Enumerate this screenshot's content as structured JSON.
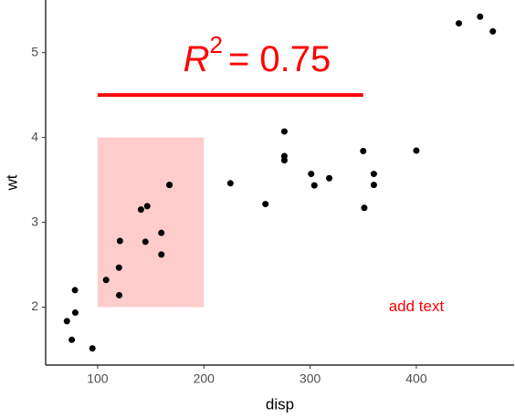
{
  "chart_data": {
    "type": "scatter",
    "x_label": "disp",
    "y_label": "wt",
    "series": [
      {
        "color": "#000000",
        "x": [
          160,
          160,
          108,
          258,
          360,
          225,
          360,
          146.7,
          140.8,
          167.6,
          167.6,
          275.8,
          275.8,
          275.8,
          472,
          460,
          440,
          78.7,
          75.7,
          71.1,
          120.1,
          318,
          304,
          350,
          400,
          79,
          120.3,
          95.1,
          351,
          145,
          301,
          121
        ],
        "values": [
          2.62,
          2.875,
          2.32,
          3.215,
          3.44,
          3.46,
          3.57,
          3.19,
          3.15,
          3.44,
          3.44,
          4.07,
          3.73,
          3.78,
          5.25,
          5.424,
          5.345,
          2.2,
          1.615,
          1.835,
          2.465,
          3.52,
          3.435,
          3.84,
          3.845,
          1.935,
          2.14,
          1.513,
          3.17,
          2.77,
          3.57,
          2.78
        ]
      }
    ],
    "xlim": [
      51.1,
      492.0
    ],
    "xticks": [
      100,
      200,
      300,
      400
    ],
    "ylim": [
      1.317,
      5.62
    ],
    "yticks": [
      2,
      3,
      4,
      5
    ],
    "grid": false,
    "annotations": {
      "rect": {
        "xmin": 100,
        "xmax": 200,
        "ymin": 2,
        "ymax": 4,
        "color": "#ff0000"
      },
      "segment": {
        "x": [
          100,
          350
        ],
        "y": [
          4.5,
          4.5
        ],
        "color": "#ff0000"
      },
      "equation": {
        "x": 250,
        "y": 4.9,
        "symbol": "R",
        "exponent": "2",
        "rest": "= 0.75",
        "color": "#ff0000"
      },
      "note": {
        "x": 400,
        "y": 2,
        "text": "add text",
        "color": "#ff0000"
      }
    }
  }
}
